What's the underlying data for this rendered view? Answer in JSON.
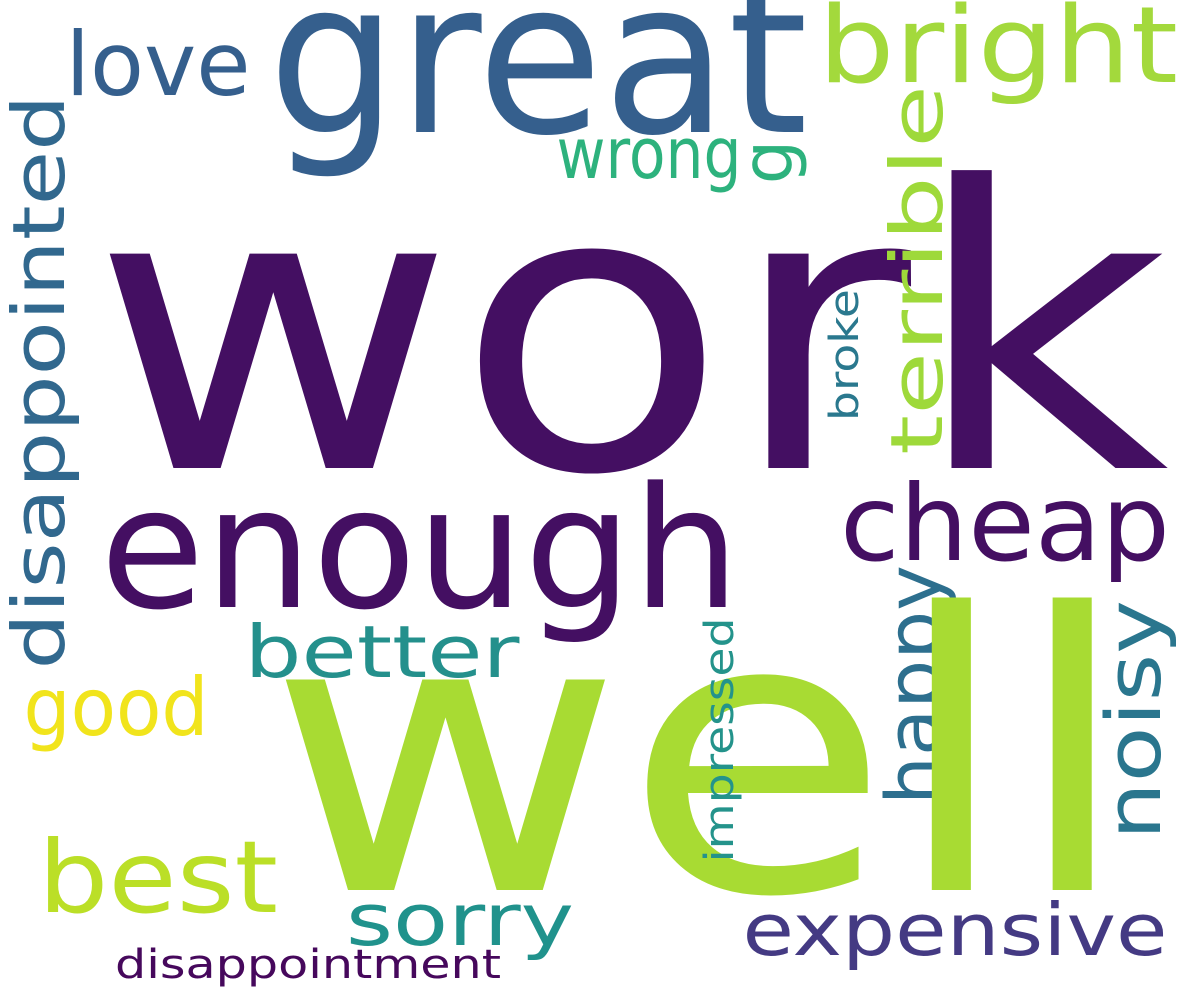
{
  "wordcloud": {
    "background_color": "#ffffff",
    "words": [
      {
        "id": "work",
        "text": "work",
        "color": "#440f62"
      },
      {
        "id": "great",
        "text": "great",
        "color": "#355f8d"
      },
      {
        "id": "love",
        "text": "love",
        "color": "#355f8d"
      },
      {
        "id": "bright",
        "text": "bright",
        "color": "#a3d93c"
      },
      {
        "id": "wrong",
        "text": "wrong",
        "color": "#2db27d"
      },
      {
        "id": "g",
        "text": "g",
        "color": "#2db27d"
      },
      {
        "id": "disappointed",
        "text": "disappointed",
        "color": "#31688e"
      },
      {
        "id": "terrible",
        "text": "terrible",
        "color": "#9ed93a"
      },
      {
        "id": "broke",
        "text": "broke",
        "color": "#2a788e"
      },
      {
        "id": "enough",
        "text": "enough",
        "color": "#440f62"
      },
      {
        "id": "cheap",
        "text": "cheap",
        "color": "#440f62"
      },
      {
        "id": "happy",
        "text": "happy",
        "color": "#2d6f8e"
      },
      {
        "id": "noisy",
        "text": "noisy",
        "color": "#2a768e"
      },
      {
        "id": "better",
        "text": "better",
        "color": "#24908c"
      },
      {
        "id": "good",
        "text": "good",
        "color": "#f1e41c"
      },
      {
        "id": "well",
        "text": "well",
        "color": "#a8db33"
      },
      {
        "id": "impressed",
        "text": "impressed",
        "color": "#24938b"
      },
      {
        "id": "best",
        "text": "best",
        "color": "#bbdf27"
      },
      {
        "id": "sorry",
        "text": "sorry",
        "color": "#20928c"
      },
      {
        "id": "expensive",
        "text": "expensive",
        "color": "#443a83"
      },
      {
        "id": "disappointment",
        "text": "disappointment",
        "color": "#46085c"
      }
    ]
  }
}
